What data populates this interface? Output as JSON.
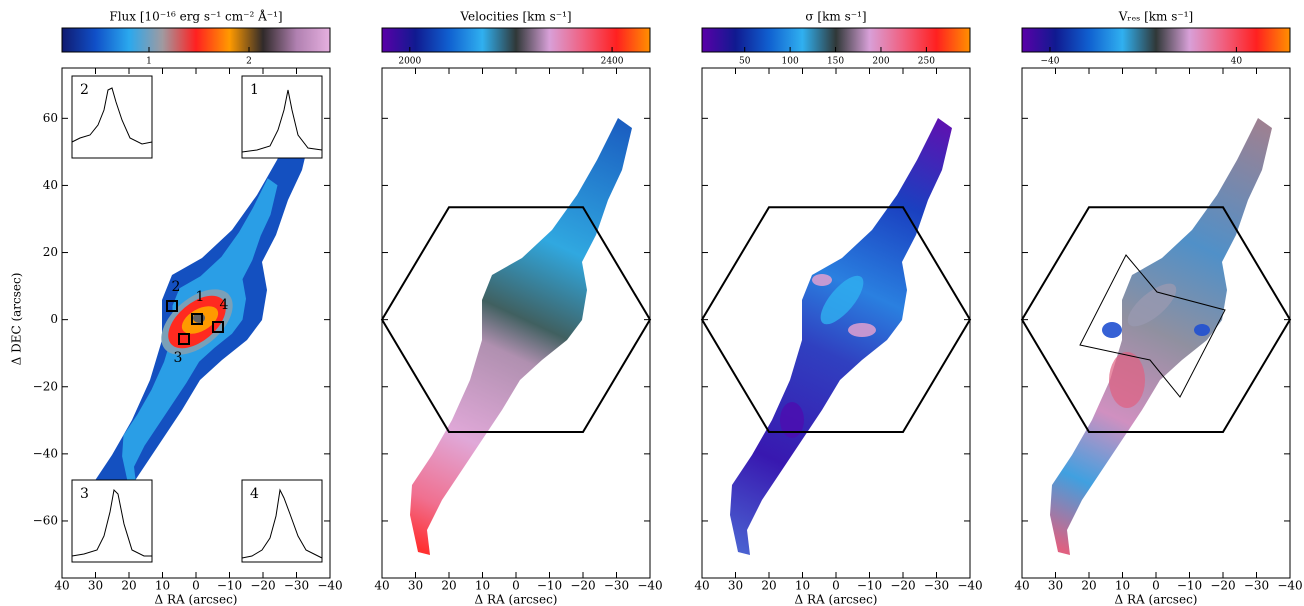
{
  "chart_data": [
    {
      "type": "map",
      "title": "Flux [10⁻¹⁶ erg s⁻¹ cm⁻² Å⁻¹]",
      "xlabel": "Δ RA (arcsec)",
      "ylabel": "Δ DEC (arcsec)",
      "xlim": [
        40,
        -40
      ],
      "ylim": [
        -77,
        75
      ],
      "xticks": [
        40,
        30,
        20,
        10,
        0,
        {
          "value": -10,
          "label": "−10"
        },
        {
          "value": -20,
          "label": "−20"
        },
        {
          "value": -30,
          "label": "−30"
        },
        {
          "value": -40,
          "label": "−40"
        }
      ],
      "yticks": [
        {
          "value": -60,
          "label": "−60"
        },
        {
          "value": -40,
          "label": "−40"
        },
        {
          "value": -20,
          "label": "−20"
        },
        0,
        20,
        40,
        60
      ],
      "clim": [
        0.13,
        2.81
      ],
      "cticks": [
        1,
        2
      ],
      "colormap": [
        "#101a70",
        "#1050c8",
        "#2aa8ee",
        "#a09aa0",
        "#ff2020",
        "#ff9a00",
        "#302a2a",
        "#b080b0",
        "#e6b0e0"
      ],
      "regions": [
        "1",
        "2",
        "3",
        "4"
      ],
      "insets": [
        "2",
        "1",
        "3",
        "4"
      ]
    },
    {
      "type": "map",
      "title": "Velocities [km s⁻¹]",
      "xlabel": "Δ RA (arcsec)",
      "xlim": [
        40,
        -40
      ],
      "ylim": [
        -77,
        75
      ],
      "xticks": [
        40,
        30,
        20,
        10,
        0,
        {
          "value": -10,
          "label": "−10"
        },
        {
          "value": -20,
          "label": "−20"
        },
        {
          "value": -30,
          "label": "−30"
        },
        {
          "value": -40,
          "label": "−40"
        }
      ],
      "yticks": [
        -60,
        -40,
        -20,
        0,
        20,
        40,
        60
      ],
      "clim": [
        1945,
        2475
      ],
      "cticks": [
        2000,
        2400
      ],
      "colormap": [
        "#5a00a8",
        "#101a90",
        "#1060d0",
        "#30b0f0",
        "#303838",
        "#d8a0d8",
        "#f06080",
        "#ff2020",
        "#ff9000"
      ]
    },
    {
      "type": "map",
      "title": "σ [km s⁻¹]",
      "xlabel": "Δ RA (arcsec)",
      "xlim": [
        40,
        -40
      ],
      "ylim": [
        -77,
        75
      ],
      "xticks": [
        40,
        30,
        20,
        10,
        0,
        {
          "value": -10,
          "label": "−10"
        },
        {
          "value": -20,
          "label": "−20"
        },
        {
          "value": -30,
          "label": "−30"
        },
        {
          "value": -40,
          "label": "−40"
        }
      ],
      "yticks": [
        -60,
        -40,
        -20,
        0,
        20,
        40,
        60
      ],
      "clim": [
        3,
        298
      ],
      "cticks": [
        50,
        100,
        150,
        200,
        250
      ],
      "colormap": [
        "#5a00a8",
        "#101a90",
        "#1060d0",
        "#30b0f0",
        "#303838",
        "#d8a0d8",
        "#f06080",
        "#ff2020",
        "#ff9000"
      ]
    },
    {
      "type": "map",
      "title": "Vᵣₑₛ [km s⁻¹]",
      "xlabel": "Δ RA (arcsec)",
      "xlim": [
        40,
        -40
      ],
      "ylim": [
        -77,
        75
      ],
      "xticks": [
        40,
        30,
        20,
        10,
        0,
        {
          "value": -10,
          "label": "−10"
        },
        {
          "value": -20,
          "label": "−20"
        },
        {
          "value": -30,
          "label": "−30"
        },
        {
          "value": -40,
          "label": "−40"
        }
      ],
      "yticks": [
        -60,
        -40,
        -20,
        0,
        20,
        40,
        60
      ],
      "clim": [
        -52,
        63
      ],
      "cticks": [
        {
          "value": -40,
          "label": "−40"
        },
        40
      ],
      "colormap": [
        "#5a00a8",
        "#101a90",
        "#1060d0",
        "#30b0f0",
        "#303838",
        "#d8a0d8",
        "#f06080",
        "#ff2020",
        "#ff9000"
      ]
    }
  ]
}
